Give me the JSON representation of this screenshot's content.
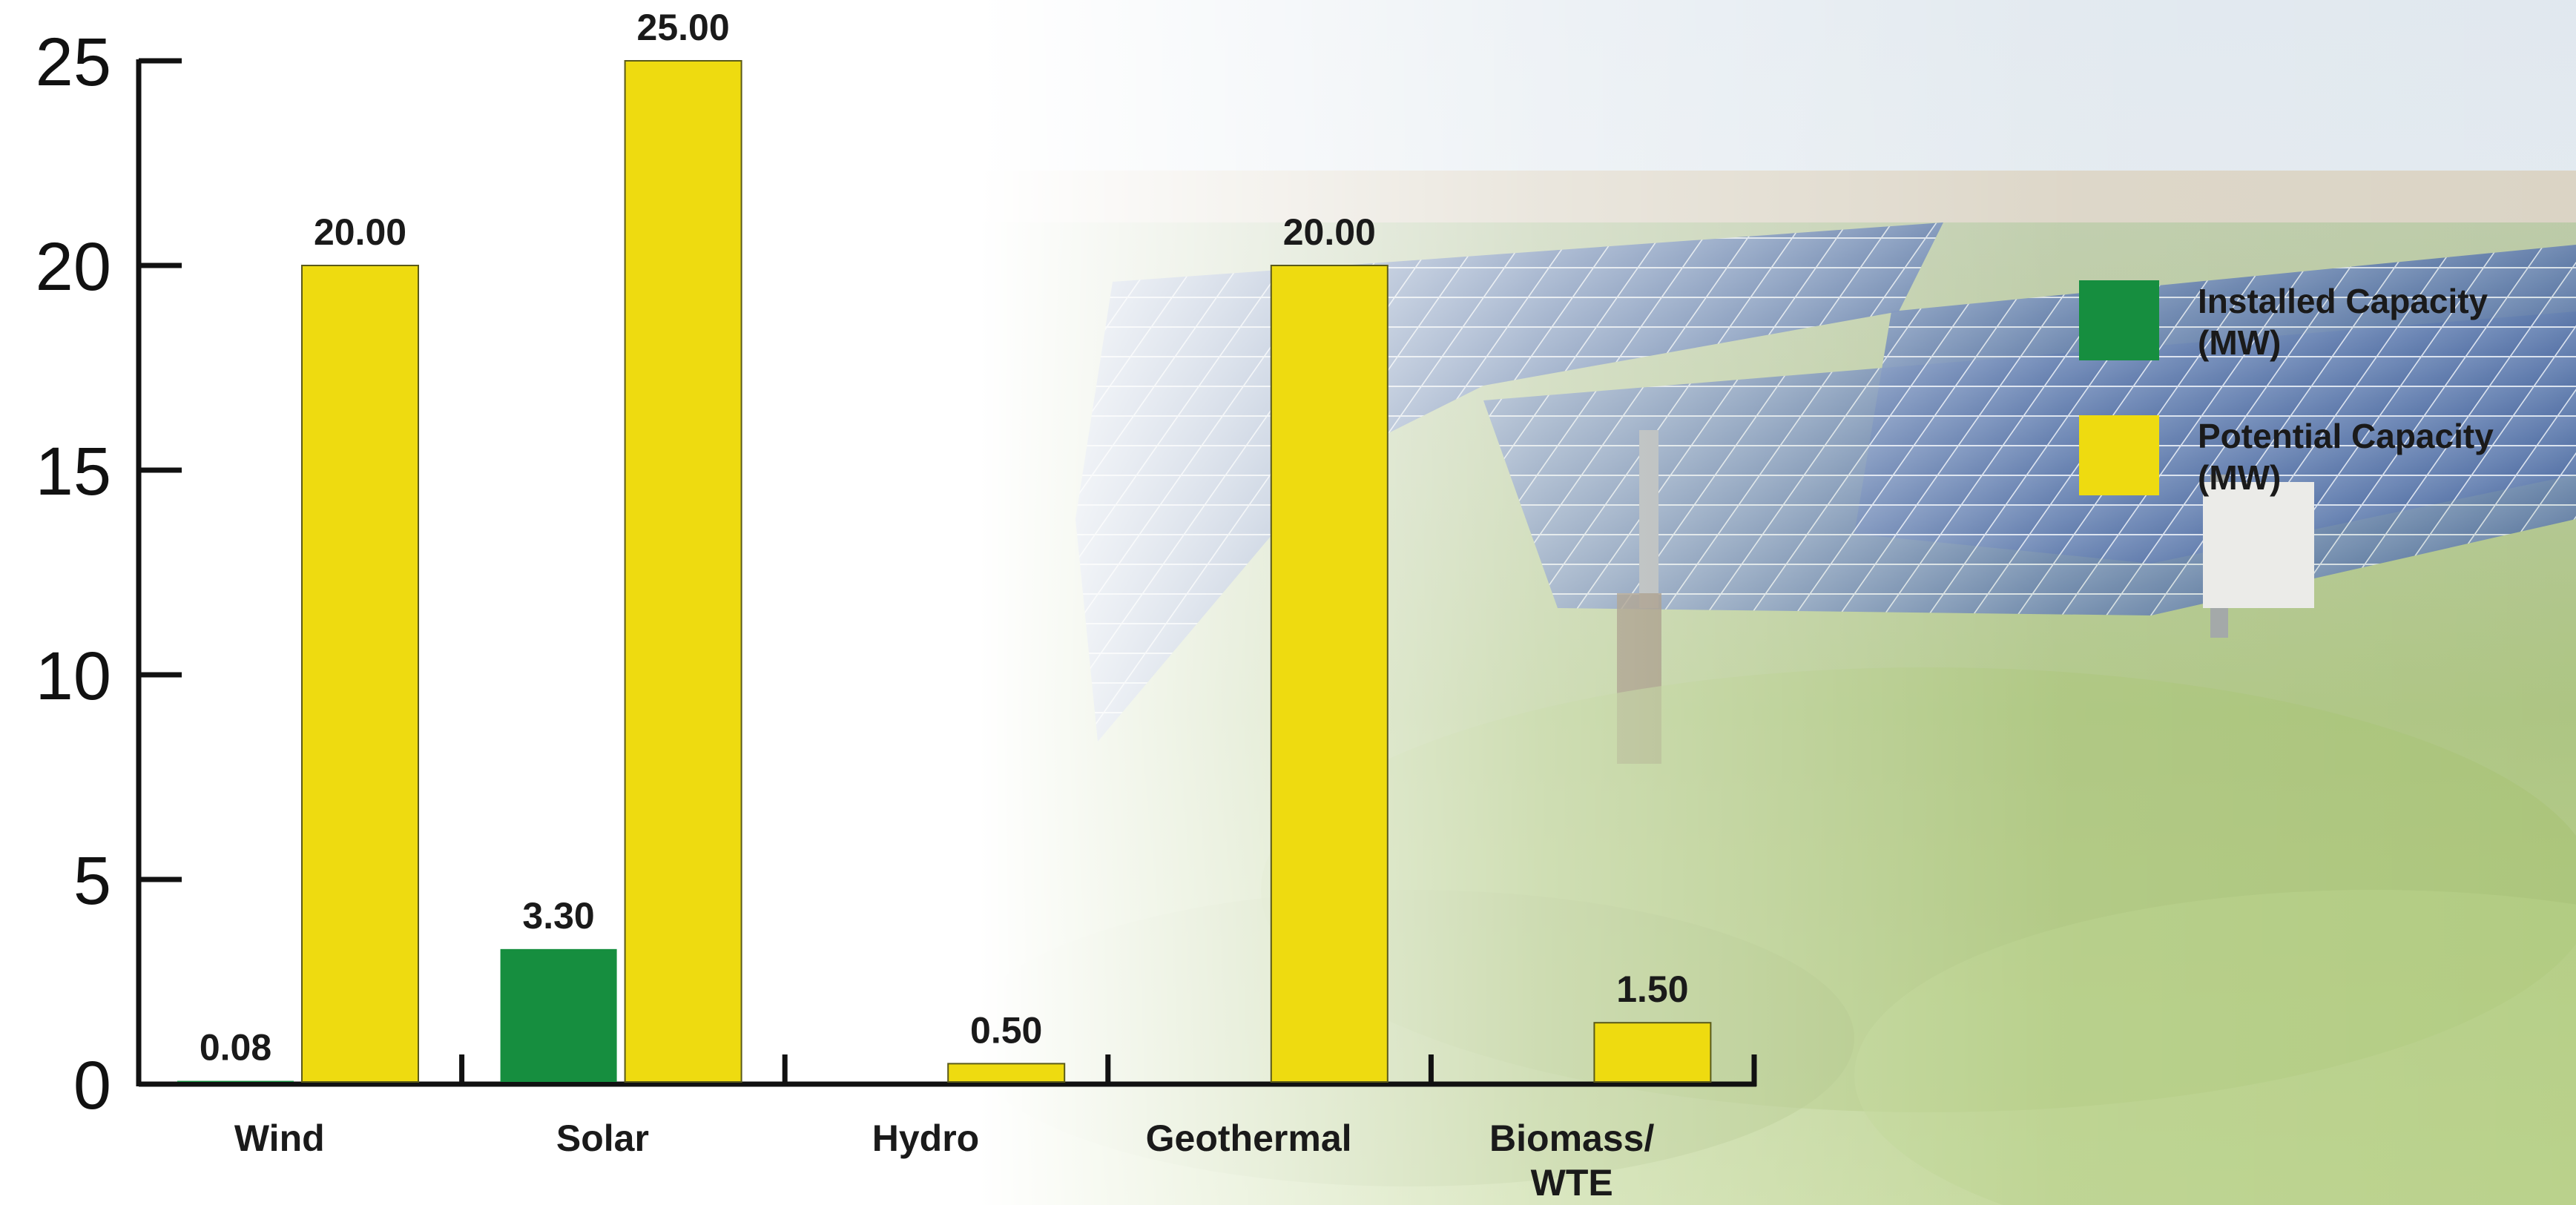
{
  "chart_data": {
    "type": "bar",
    "categories": [
      "Wind",
      "Solar",
      "Hydro",
      "Geothermal",
      "Biomass/ WTE"
    ],
    "series": [
      {
        "name": "Installed Capacity (MW)",
        "color": "#168e3f",
        "values": [
          0.08,
          3.3,
          null,
          null,
          null
        ],
        "labels": [
          "0.08",
          "3.30",
          "",
          "",
          ""
        ]
      },
      {
        "name": "Potential Capacity (MW)",
        "color": "#eedb10",
        "values": [
          20.0,
          25.0,
          0.5,
          20.0,
          1.5
        ],
        "labels": [
          "20.00",
          "25.00",
          "0.50",
          "20.00",
          "1.50"
        ]
      }
    ],
    "yticks": [
      "0",
      "5",
      "10",
      "15",
      "20",
      "25"
    ],
    "ylim": [
      0,
      25
    ],
    "legend_position": "top-right",
    "xlabel": "",
    "ylabel": "",
    "title": ""
  },
  "legend": {
    "installed_line1": "Installed Capacity",
    "installed_line2": "(MW)",
    "potential_line1": "Potential Capacity",
    "potential_line2": "(MW)"
  },
  "category_lines": [
    [
      "Wind"
    ],
    [
      "Solar"
    ],
    [
      "Hydro"
    ],
    [
      "Geothermal"
    ],
    [
      "Biomass/",
      "WTE"
    ]
  ],
  "background": "solar-panel-field-photo"
}
